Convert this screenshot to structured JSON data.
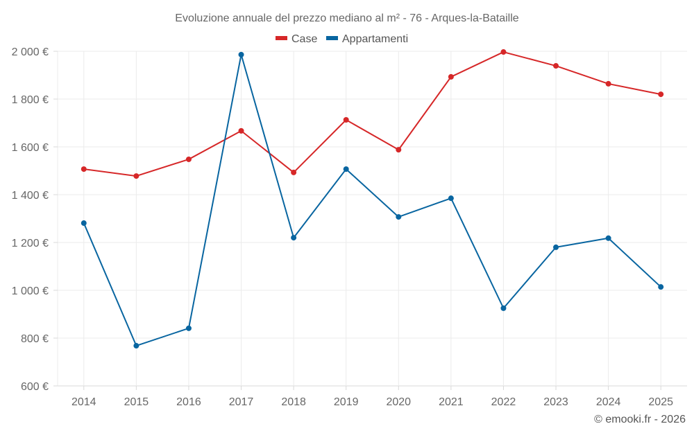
{
  "chart_data": {
    "type": "line",
    "title": "Evoluzione annuale del prezzo mediano al m² - 76 - Arques-la-Bataille",
    "xlabel": "",
    "ylabel": "",
    "x": [
      "2014",
      "2015",
      "2016",
      "2017",
      "2018",
      "2019",
      "2020",
      "2021",
      "2022",
      "2023",
      "2024",
      "2025"
    ],
    "ylim": [
      600,
      2000
    ],
    "yticks": [
      600,
      800,
      1000,
      1200,
      1400,
      1600,
      1800,
      2000
    ],
    "ytick_labels": [
      "600 €",
      "800 €",
      "1 000 €",
      "1 200 €",
      "1 400 €",
      "1 600 €",
      "1 800 €",
      "2 000 €"
    ],
    "grid": true,
    "legend_position": "top-center",
    "series": [
      {
        "name": "Case",
        "color": "#d62728",
        "values": [
          1507,
          1478,
          1548,
          1667,
          1493,
          1713,
          1588,
          1893,
          1997,
          1939,
          1864,
          1820
        ]
      },
      {
        "name": "Appartamenti",
        "color": "#0865a0",
        "values": [
          1281,
          768,
          841,
          1986,
          1220,
          1507,
          1307,
          1385,
          925,
          1180,
          1218,
          1014
        ]
      }
    ],
    "credit": "© emooki.fr - 2026"
  }
}
